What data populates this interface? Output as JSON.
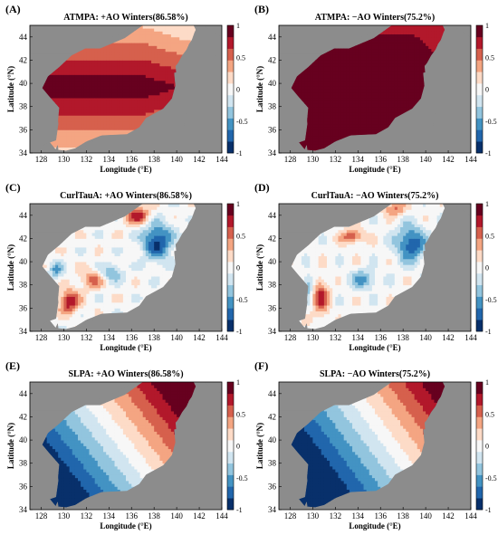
{
  "colors": {
    "land": "#8c8c8c",
    "colormap": [
      "#08306b",
      "#2166ac",
      "#4393c3",
      "#92c5de",
      "#d1e5f0",
      "#f7f7f7",
      "#fddbc7",
      "#f4a582",
      "#d6604d",
      "#b2182b",
      "#67001f"
    ]
  },
  "chart_data": [
    {
      "type": "heatmap",
      "label": "(A)",
      "title": "ATMPA: +AO Winters(86.58%)",
      "xlabel": "Longitude (°E)",
      "ylabel": "Latitude (°N)",
      "xlim": [
        127,
        144
      ],
      "ylim": [
        34,
        45
      ],
      "xticks": [
        "128",
        "130",
        "132",
        "134",
        "136",
        "138",
        "140",
        "142",
        "144"
      ],
      "yticks": [
        "34",
        "36",
        "38",
        "40",
        "42",
        "44"
      ],
      "colorbar": {
        "range": [
          -1,
          1
        ],
        "ticks": [
          "1",
          "0.5",
          "0",
          "-0.5",
          "-1"
        ]
      },
      "field": "atmp_pos"
    },
    {
      "type": "heatmap",
      "label": "(B)",
      "title": "ATMPA: −AO Winters(75.2%)",
      "xlabel": "Longitude (°E)",
      "ylabel": "Latitude (°N)",
      "xlim": [
        127,
        144
      ],
      "ylim": [
        34,
        45
      ],
      "xticks": [
        "128",
        "130",
        "132",
        "134",
        "136",
        "138",
        "140",
        "142",
        "144"
      ],
      "yticks": [
        "34",
        "36",
        "38",
        "40",
        "42",
        "44"
      ],
      "colorbar": {
        "range": [
          -1,
          1
        ],
        "ticks": [
          "1",
          "0.5",
          "0",
          "-0.5",
          "-1"
        ]
      },
      "field": "atmp_neg"
    },
    {
      "type": "heatmap",
      "label": "(C)",
      "title": "CurlTauA: +AO Winters(86.58%)",
      "xlabel": "Longitude (°E)",
      "ylabel": "Latitude (°N)",
      "xlim": [
        127,
        144
      ],
      "ylim": [
        34,
        45
      ],
      "xticks": [
        "128",
        "130",
        "132",
        "134",
        "136",
        "138",
        "140",
        "142",
        "144"
      ],
      "yticks": [
        "34",
        "36",
        "38",
        "40",
        "42",
        "44"
      ],
      "colorbar": {
        "range": [
          -1,
          1
        ],
        "ticks": [
          "1",
          "0.5",
          "0",
          "-0.5",
          "-1"
        ]
      },
      "field": "curl_pos"
    },
    {
      "type": "heatmap",
      "label": "(D)",
      "title": "CurlTauA: −AO Winters(75.2%)",
      "xlabel": "Longitude (°E)",
      "ylabel": "Latitude (°N)",
      "xlim": [
        127,
        144
      ],
      "ylim": [
        34,
        45
      ],
      "xticks": [
        "128",
        "130",
        "132",
        "134",
        "136",
        "138",
        "140",
        "142",
        "144"
      ],
      "yticks": [
        "34",
        "36",
        "38",
        "40",
        "42",
        "44"
      ],
      "colorbar": {
        "range": [
          -1,
          1
        ],
        "ticks": [
          "1",
          "0.5",
          "0",
          "-0.5",
          "-1"
        ]
      },
      "field": "curl_neg"
    },
    {
      "type": "heatmap",
      "label": "(E)",
      "title": "SLPA: +AO Winters(86.58%)",
      "xlabel": "Longitude (°E)",
      "ylabel": "Latitude (°N)",
      "xlim": [
        127,
        144
      ],
      "ylim": [
        34,
        45
      ],
      "xticks": [
        "128",
        "130",
        "132",
        "134",
        "136",
        "138",
        "140",
        "142",
        "144"
      ],
      "yticks": [
        "34",
        "36",
        "38",
        "40",
        "42",
        "44"
      ],
      "colorbar": {
        "range": [
          -1,
          1
        ],
        "ticks": [
          "1",
          "0.5",
          "0",
          "-0.5",
          "-1"
        ]
      },
      "field": "slp_pos"
    },
    {
      "type": "heatmap",
      "label": "(F)",
      "title": "SLPA: −AO Winters(75.2%)",
      "xlabel": "Longitude (°E)",
      "ylabel": "Latitude (°N)",
      "xlim": [
        127,
        144
      ],
      "ylim": [
        34,
        45
      ],
      "xticks": [
        "128",
        "130",
        "132",
        "134",
        "136",
        "138",
        "140",
        "142",
        "144"
      ],
      "yticks": [
        "34",
        "36",
        "38",
        "40",
        "42",
        "44"
      ],
      "colorbar": {
        "range": [
          -1,
          1
        ],
        "ticks": [
          "1",
          "0.5",
          "0",
          "-0.5",
          "-1"
        ]
      },
      "field": "slp_neg"
    }
  ]
}
